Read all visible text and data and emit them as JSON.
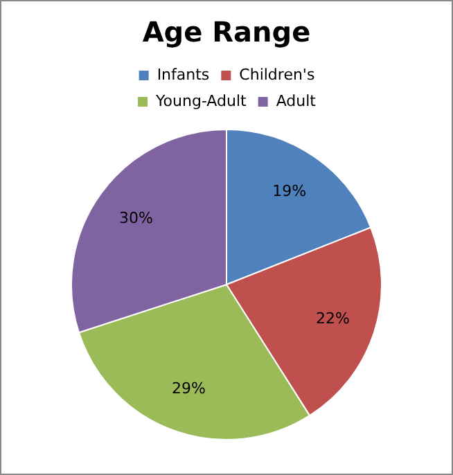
{
  "chart_data": {
    "type": "pie",
    "title": "Age Range",
    "categories": [
      "Infants",
      "Children's",
      "Young-Adult",
      "Adult"
    ],
    "values": [
      19,
      22,
      29,
      30
    ],
    "colors": [
      "#4f81bd",
      "#c0504d",
      "#9bbb59",
      "#8064a2"
    ],
    "value_labels": [
      "19%",
      "22%",
      "29%",
      "30%"
    ],
    "legend": "top"
  }
}
